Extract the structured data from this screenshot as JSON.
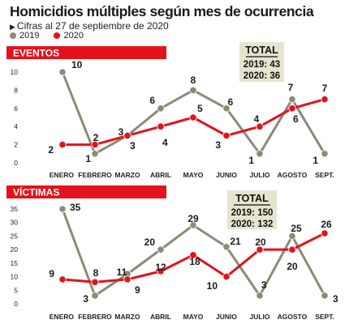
{
  "header": {
    "title": "Homicidios múltiples según mes de ocurrencia",
    "subtitle": "Cifras al 27 de septiembre de 2020"
  },
  "legend": [
    {
      "label": "2019",
      "color": "#8b8b76"
    },
    {
      "label": "2020",
      "color": "#e3121b"
    }
  ],
  "colors": {
    "s2019": "#8b8b76",
    "s2020": "#e3121b",
    "banner": "#e3121b",
    "totalbox": "#e6e3cf"
  },
  "chart_data": [
    {
      "type": "line",
      "title": "EVENTOS",
      "categories": [
        "ENERO",
        "FEBRERO",
        "MARZO",
        "ABRIL",
        "MAYO",
        "JUNIO",
        "JULIO",
        "AGOSTO",
        "SEPT."
      ],
      "yticks": [
        0,
        2,
        4,
        6,
        8,
        10
      ],
      "ylim": [
        0,
        10
      ],
      "grid": false,
      "series": [
        {
          "name": "2019",
          "values": [
            10,
            1,
            3,
            6,
            8,
            6,
            1,
            7,
            1
          ]
        },
        {
          "name": "2020",
          "values": [
            2,
            2,
            3,
            4,
            5,
            3,
            4,
            6,
            7
          ]
        }
      ],
      "total": {
        "heading": "TOTAL",
        "lines": [
          "2019: 43",
          "2020: 36"
        ]
      }
    },
    {
      "type": "line",
      "title": "VÍCTIMAS",
      "categories": [
        "ENERO",
        "FEBRERO",
        "MARZO",
        "ABRIL",
        "MAYO",
        "JUNIO",
        "JULIO",
        "AGOSTO",
        "SEPT."
      ],
      "yticks": [
        0,
        5,
        10,
        15,
        20,
        25,
        30,
        35
      ],
      "ylim": [
        0,
        35
      ],
      "grid": false,
      "series": [
        {
          "name": "2019",
          "values": [
            35,
            3,
            11,
            20,
            29,
            21,
            3,
            25,
            3
          ]
        },
        {
          "name": "2020",
          "values": [
            9,
            8,
            9,
            12,
            18,
            10,
            20,
            20,
            26
          ]
        }
      ],
      "total": {
        "heading": "TOTAL",
        "lines": [
          "2019: 150",
          "2020: 132"
        ]
      }
    }
  ]
}
